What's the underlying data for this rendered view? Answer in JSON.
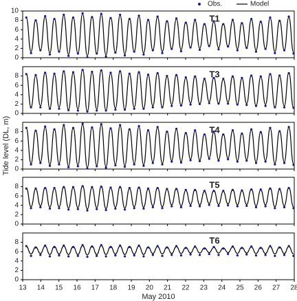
{
  "chart_data": [
    {
      "type": "line",
      "title": "T1",
      "x": [
        13.2,
        13.46,
        13.72,
        13.98,
        14.24,
        14.5,
        14.75,
        15.01,
        15.27,
        15.53,
        15.79,
        16.05,
        16.31,
        16.57,
        16.83,
        17.09,
        17.34,
        17.6,
        17.86,
        18.12,
        18.38,
        18.64,
        18.9,
        19.16,
        19.42,
        19.68,
        19.93,
        20.19,
        20.45,
        20.71,
        20.97,
        21.23,
        21.49,
        21.75,
        22.01,
        22.27,
        22.52,
        22.78,
        23.04,
        23.3,
        23.56,
        23.82,
        24.08,
        24.34,
        24.6,
        24.86,
        25.11,
        25.37,
        25.63,
        25.89,
        26.15,
        26.41,
        26.67,
        26.93,
        27.19,
        27.45,
        27.7,
        27.96
      ],
      "series": [
        {
          "name": "Obs.",
          "color": "#1a1a8c",
          "style": "dots",
          "values": [
            8.6,
            1.0,
            8.0,
            1.6,
            8.9,
            0.7,
            8.3,
            1.3,
            9.2,
            0.4,
            8.6,
            0.9,
            9.5,
            0.1,
            8.7,
            0.9,
            9.4,
            0.3,
            8.5,
            1.1,
            9.2,
            0.5,
            8.3,
            1.3,
            9.0,
            0.7,
            8.1,
            1.6,
            8.8,
            1.0,
            7.8,
            1.9,
            8.4,
            1.4,
            7.5,
            2.2,
            8.1,
            1.7,
            7.2,
            2.5,
            7.8,
            1.8,
            7.2,
            2.4,
            8.1,
            1.6,
            7.4,
            2.1,
            8.3,
            1.3,
            7.7,
            1.9,
            8.6,
            1.0,
            7.9,
            1.6,
            8.8,
            0.9
          ]
        },
        {
          "name": "Model",
          "color": "#000000",
          "style": "line",
          "values": [
            8.5,
            1.3,
            8.1,
            1.6,
            8.8,
            1.0,
            8.4,
            1.3,
            9.1,
            0.7,
            8.7,
            0.9,
            9.4,
            0.4,
            8.8,
            0.9,
            9.3,
            0.6,
            8.6,
            1.1,
            9.1,
            0.8,
            8.4,
            1.3,
            8.9,
            1.0,
            8.2,
            1.6,
            8.7,
            1.3,
            7.9,
            1.9,
            8.3,
            1.7,
            7.6,
            2.2,
            8.0,
            2.0,
            7.3,
            2.5,
            7.7,
            2.1,
            7.3,
            2.4,
            8.0,
            1.9,
            7.5,
            2.1,
            8.2,
            1.6,
            7.8,
            1.9,
            8.5,
            1.3,
            8.0,
            1.6,
            8.7,
            1.2
          ]
        }
      ],
      "xlim": [
        13,
        28
      ],
      "xticks": [
        13,
        14,
        15,
        16,
        17,
        18,
        19,
        20,
        21,
        22,
        23,
        24,
        25,
        26,
        27,
        28
      ],
      "ylim": [
        0,
        10
      ],
      "yticks": [
        0,
        2,
        4,
        6,
        8,
        10
      ],
      "legend": "top-right"
    },
    {
      "type": "line",
      "title": "T3",
      "x": [
        13.2,
        13.46,
        13.72,
        13.98,
        14.24,
        14.5,
        14.75,
        15.01,
        15.27,
        15.53,
        15.79,
        16.05,
        16.31,
        16.57,
        16.83,
        17.09,
        17.34,
        17.6,
        17.86,
        18.12,
        18.38,
        18.64,
        18.9,
        19.16,
        19.42,
        19.68,
        19.93,
        20.19,
        20.45,
        20.71,
        20.97,
        21.23,
        21.49,
        21.75,
        22.01,
        22.27,
        22.52,
        22.78,
        23.04,
        23.3,
        23.56,
        23.82,
        24.08,
        24.34,
        24.6,
        24.86,
        25.11,
        25.37,
        25.63,
        25.89,
        26.15,
        26.41,
        26.67,
        26.93,
        27.19,
        27.45,
        27.7,
        27.96
      ],
      "series": [
        {
          "color": "#1a1a8c",
          "style": "dots",
          "values": [
            8.4,
            1.3,
            8.2,
            1.3,
            8.7,
            1.0,
            8.5,
            1.0,
            9.0,
            0.7,
            8.8,
            0.6,
            9.3,
            0.4,
            8.9,
            0.6,
            9.2,
            0.6,
            8.7,
            0.8,
            9.0,
            0.8,
            8.5,
            1.0,
            8.8,
            1.0,
            8.3,
            1.3,
            8.6,
            1.3,
            8.0,
            1.6,
            8.2,
            1.7,
            7.7,
            1.9,
            7.9,
            2.0,
            7.4,
            2.2,
            7.6,
            2.1,
            7.4,
            2.1,
            7.9,
            1.9,
            7.6,
            1.8,
            8.1,
            1.6,
            7.9,
            1.6,
            8.4,
            1.3,
            8.1,
            1.3,
            8.6,
            1.2
          ]
        },
        {
          "color": "#000000",
          "style": "line",
          "values": [
            8.5,
            1.3,
            8.1,
            1.6,
            8.8,
            1.0,
            8.4,
            1.3,
            9.1,
            0.7,
            8.7,
            0.9,
            9.4,
            0.4,
            8.8,
            0.9,
            9.3,
            0.6,
            8.6,
            1.1,
            9.1,
            0.8,
            8.4,
            1.3,
            8.9,
            1.0,
            8.2,
            1.6,
            8.7,
            1.3,
            7.9,
            1.9,
            8.3,
            1.7,
            7.6,
            2.2,
            8.0,
            2.0,
            7.3,
            2.5,
            7.7,
            2.1,
            7.3,
            2.4,
            8.0,
            1.9,
            7.5,
            2.1,
            8.2,
            1.6,
            7.8,
            1.9,
            8.5,
            1.3,
            8.0,
            1.6,
            8.7,
            1.2
          ]
        }
      ],
      "xlim": [
        13,
        28
      ],
      "xticks": [
        13,
        14,
        15,
        16,
        17,
        18,
        19,
        20,
        21,
        22,
        23,
        24,
        25,
        26,
        27,
        28
      ],
      "ylim": [
        0,
        10
      ],
      "yticks": [
        0,
        2,
        4,
        6,
        8
      ]
    },
    {
      "type": "line",
      "title": "T4",
      "y_label": "Tide level (DL, m)",
      "x": [
        13.2,
        13.46,
        13.72,
        13.98,
        14.24,
        14.5,
        14.75,
        15.01,
        15.27,
        15.53,
        15.79,
        16.05,
        16.31,
        16.57,
        16.83,
        17.09,
        17.34,
        17.6,
        17.86,
        18.12,
        18.38,
        18.64,
        18.9,
        19.16,
        19.42,
        19.68,
        19.93,
        20.19,
        20.45,
        20.71,
        20.97,
        21.23,
        21.49,
        21.75,
        22.01,
        22.27,
        22.52,
        22.78,
        23.04,
        23.3,
        23.56,
        23.82,
        24.08,
        24.34,
        24.6,
        24.86,
        25.11,
        25.37,
        25.63,
        25.89,
        26.15,
        26.41,
        26.67,
        26.93,
        27.19,
        27.45,
        27.7,
        27.96
      ],
      "series": [
        {
          "color": "#1a1a8c",
          "style": "dots",
          "values": [
            8.8,
            1.0,
            8.2,
            1.3,
            9.1,
            0.7,
            8.5,
            1.0,
            9.4,
            0.4,
            8.8,
            0.6,
            9.7,
            0.1,
            8.9,
            0.6,
            9.6,
            0.3,
            8.7,
            0.8,
            9.4,
            0.5,
            8.5,
            1.0,
            9.2,
            0.7,
            8.3,
            1.3,
            9.0,
            1.0,
            8.0,
            1.6,
            8.6,
            1.4,
            7.7,
            1.9,
            8.3,
            1.7,
            7.4,
            2.2,
            8.0,
            1.8,
            7.4,
            2.1,
            8.3,
            1.6,
            7.6,
            1.8,
            8.5,
            1.3,
            7.9,
            1.6,
            8.8,
            1.0,
            8.1,
            1.3,
            9.0,
            0.9
          ]
        },
        {
          "color": "#000000",
          "style": "line",
          "values": [
            8.7,
            1.2,
            8.3,
            1.5,
            9.0,
            0.9,
            8.6,
            1.2,
            9.3,
            0.6,
            8.9,
            0.8,
            9.6,
            0.3,
            9.0,
            0.8,
            9.5,
            0.5,
            8.8,
            1.0,
            9.3,
            0.7,
            8.6,
            1.2,
            9.1,
            0.9,
            8.4,
            1.5,
            8.9,
            1.2,
            8.1,
            1.8,
            8.5,
            1.6,
            7.8,
            2.1,
            8.2,
            1.9,
            7.5,
            2.4,
            7.9,
            2.0,
            7.5,
            2.3,
            8.2,
            1.8,
            7.7,
            2.0,
            8.4,
            1.5,
            8.0,
            1.8,
            8.7,
            1.2,
            8.2,
            1.5,
            8.9,
            1.1
          ]
        }
      ],
      "xlim": [
        13,
        28
      ],
      "xticks": [
        13,
        14,
        15,
        16,
        17,
        18,
        19,
        20,
        21,
        22,
        23,
        24,
        25,
        26,
        27,
        28
      ],
      "ylim": [
        0,
        10
      ],
      "yticks": [
        0,
        2,
        4,
        6,
        8
      ]
    },
    {
      "type": "line",
      "title": "T5",
      "x": [
        13.2,
        13.46,
        13.72,
        13.98,
        14.24,
        14.5,
        14.75,
        15.01,
        15.27,
        15.53,
        15.79,
        16.05,
        16.31,
        16.57,
        16.83,
        17.09,
        17.34,
        17.6,
        17.86,
        18.12,
        18.38,
        18.64,
        18.9,
        19.16,
        19.42,
        19.68,
        19.93,
        20.19,
        20.45,
        20.71,
        20.97,
        21.23,
        21.49,
        21.75,
        22.01,
        22.27,
        22.52,
        22.78,
        23.04,
        23.3,
        23.56,
        23.82,
        24.08,
        24.34,
        24.6,
        24.86,
        25.11,
        25.37,
        25.63,
        25.89,
        26.15,
        26.41,
        26.67,
        26.93,
        27.19,
        27.45,
        27.7,
        27.96
      ],
      "series": [
        {
          "color": "#1a1a8c",
          "style": "dots",
          "values": [
            7.6,
            3.4,
            7.6,
            3.6,
            7.7,
            3.3,
            7.7,
            3.4,
            7.9,
            3.1,
            7.9,
            3.2,
            8.1,
            2.9,
            7.9,
            3.2,
            8.0,
            3.0,
            7.8,
            3.3,
            7.9,
            3.1,
            7.7,
            3.4,
            7.8,
            3.3,
            7.6,
            3.6,
            7.7,
            3.4,
            7.5,
            3.8,
            7.5,
            3.6,
            7.3,
            3.9,
            7.3,
            3.8,
            7.1,
            4.1,
            7.1,
            3.9,
            7.1,
            4.0,
            7.3,
            3.8,
            7.2,
            3.9,
            7.4,
            3.6,
            7.4,
            3.8,
            7.6,
            3.4,
            7.5,
            3.6,
            7.7,
            3.4
          ]
        },
        {
          "color": "#000000",
          "style": "line",
          "values": [
            7.7,
            3.7,
            7.5,
            3.9,
            7.8,
            3.6,
            7.6,
            3.7,
            8.0,
            3.4,
            7.8,
            3.5,
            8.2,
            3.2,
            7.8,
            3.5,
            8.1,
            3.3,
            7.7,
            3.6,
            8.0,
            3.4,
            7.6,
            3.7,
            7.9,
            3.6,
            7.5,
            3.9,
            7.8,
            3.7,
            7.4,
            4.1,
            7.6,
            3.9,
            7.2,
            4.2,
            7.4,
            4.1,
            7.0,
            4.4,
            7.2,
            4.2,
            7.0,
            4.3,
            7.4,
            4.1,
            7.1,
            4.2,
            7.5,
            3.9,
            7.3,
            4.1,
            7.7,
            3.7,
            7.4,
            3.9,
            7.8,
            3.7
          ]
        }
      ],
      "xlim": [
        13,
        28
      ],
      "xticks": [
        13,
        14,
        15,
        16,
        17,
        18,
        19,
        20,
        21,
        22,
        23,
        24,
        25,
        26,
        27,
        28
      ],
      "ylim": [
        0,
        10
      ],
      "yticks": [
        0,
        2,
        4,
        6,
        8
      ]
    },
    {
      "type": "line",
      "title": "T6",
      "x_label": "May 2010",
      "x_tick_labels": true,
      "x": [
        13.2,
        13.46,
        13.72,
        13.98,
        14.24,
        14.5,
        14.75,
        15.01,
        15.27,
        15.53,
        15.79,
        16.05,
        16.31,
        16.57,
        16.83,
        17.09,
        17.34,
        17.6,
        17.86,
        18.12,
        18.38,
        18.64,
        18.9,
        19.16,
        19.42,
        19.68,
        19.93,
        20.19,
        20.45,
        20.71,
        20.97,
        21.23,
        21.49,
        21.75,
        22.01,
        22.27,
        22.52,
        22.78,
        23.04,
        23.3,
        23.56,
        23.82,
        24.08,
        24.34,
        24.6,
        24.86,
        25.11,
        25.37,
        25.63,
        25.89,
        26.15,
        26.41,
        26.67,
        26.93,
        27.19,
        27.45,
        27.7,
        27.96
      ],
      "series": [
        {
          "color": "#1a1a8c",
          "style": "dots",
          "values": [
            7.2,
            5.1,
            6.9,
            5.3,
            7.3,
            5.0,
            7.0,
            5.2,
            7.3,
            5.0,
            7.0,
            5.1,
            7.4,
            4.9,
            7.1,
            5.1,
            7.4,
            5.0,
            7.0,
            5.2,
            7.3,
            5.0,
            7.0,
            5.2,
            7.3,
            5.0,
            6.9,
            5.3,
            7.2,
            5.1,
            6.9,
            5.3,
            7.2,
            5.2,
            6.8,
            5.4,
            7.1,
            5.3,
            6.7,
            5.5,
            7.0,
            5.3,
            6.7,
            5.5,
            7.1,
            5.2,
            6.8,
            5.4,
            7.1,
            5.2,
            6.8,
            5.3,
            7.2,
            5.1,
            6.9,
            5.3,
            7.2,
            5.1
          ]
        },
        {
          "color": "#000000",
          "style": "line",
          "values": [
            7.1,
            5.5,
            7.0,
            5.6,
            7.2,
            5.4,
            7.1,
            5.5,
            7.2,
            5.4,
            7.1,
            5.4,
            7.3,
            5.3,
            7.2,
            5.4,
            7.3,
            5.4,
            7.1,
            5.5,
            7.2,
            5.4,
            7.1,
            5.5,
            7.2,
            5.4,
            7.0,
            5.6,
            7.1,
            5.5,
            7.0,
            5.6,
            7.1,
            5.6,
            6.9,
            5.7,
            7.0,
            5.7,
            6.8,
            5.8,
            6.9,
            5.7,
            6.8,
            5.8,
            7.0,
            5.6,
            6.9,
            5.7,
            7.0,
            5.6,
            6.9,
            5.6,
            7.1,
            5.5,
            7.0,
            5.6,
            7.1,
            5.5
          ]
        }
      ],
      "xlim": [
        13,
        28
      ],
      "xticks": [
        13,
        14,
        15,
        16,
        17,
        18,
        19,
        20,
        21,
        22,
        23,
        24,
        25,
        26,
        27,
        28
      ],
      "ylim": [
        0,
        10
      ],
      "yticks": [
        0,
        2,
        4,
        6,
        8
      ]
    }
  ]
}
